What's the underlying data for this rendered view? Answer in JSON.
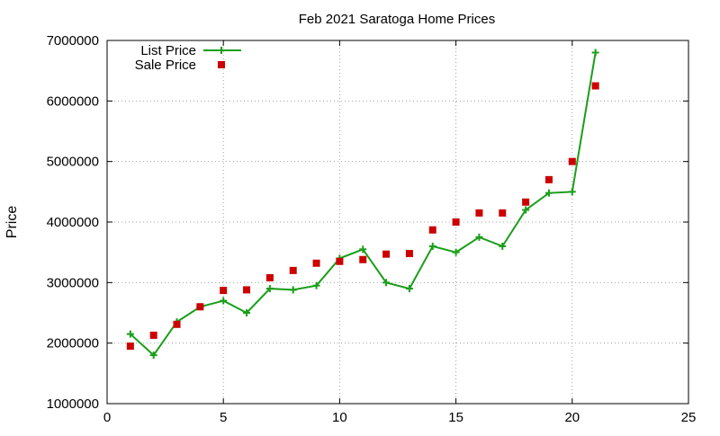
{
  "chart_data": {
    "type": "line",
    "title": "Feb 2021 Saratoga Home Prices",
    "xlabel": "",
    "ylabel": "Price",
    "xlim": [
      0,
      25
    ],
    "ylim": [
      1000000,
      7000000
    ],
    "x_ticks": [
      0,
      5,
      10,
      15,
      20,
      25
    ],
    "y_ticks": [
      1000000,
      2000000,
      3000000,
      4000000,
      5000000,
      6000000,
      7000000
    ],
    "grid": true,
    "legend_position": "top-left",
    "series": [
      {
        "name": "List Price",
        "style": "lines+points",
        "marker": "plus",
        "color": "#1a9e1a",
        "x": [
          1,
          2,
          3,
          4,
          5,
          6,
          7,
          8,
          9,
          10,
          11,
          12,
          13,
          14,
          15,
          16,
          17,
          18,
          19,
          20,
          21
        ],
        "values": [
          2150000,
          1800000,
          2350000,
          2600000,
          2700000,
          2500000,
          2900000,
          2880000,
          2950000,
          3400000,
          3550000,
          3000000,
          2900000,
          3600000,
          3500000,
          3750000,
          3600000,
          4200000,
          4480000,
          4500000,
          6800000
        ]
      },
      {
        "name": "Sale Price",
        "style": "points",
        "marker": "square",
        "color": "#cc0000",
        "x": [
          1,
          2,
          3,
          4,
          5,
          6,
          7,
          8,
          9,
          10,
          11,
          12,
          13,
          14,
          15,
          16,
          17,
          18,
          19,
          20,
          21
        ],
        "values": [
          1950000,
          2130000,
          2310000,
          2600000,
          2870000,
          2880000,
          3080000,
          3200000,
          3320000,
          3350000,
          3380000,
          3470000,
          3480000,
          3870000,
          4000000,
          4150000,
          4150000,
          4330000,
          4700000,
          5000000,
          6250000
        ]
      }
    ]
  }
}
